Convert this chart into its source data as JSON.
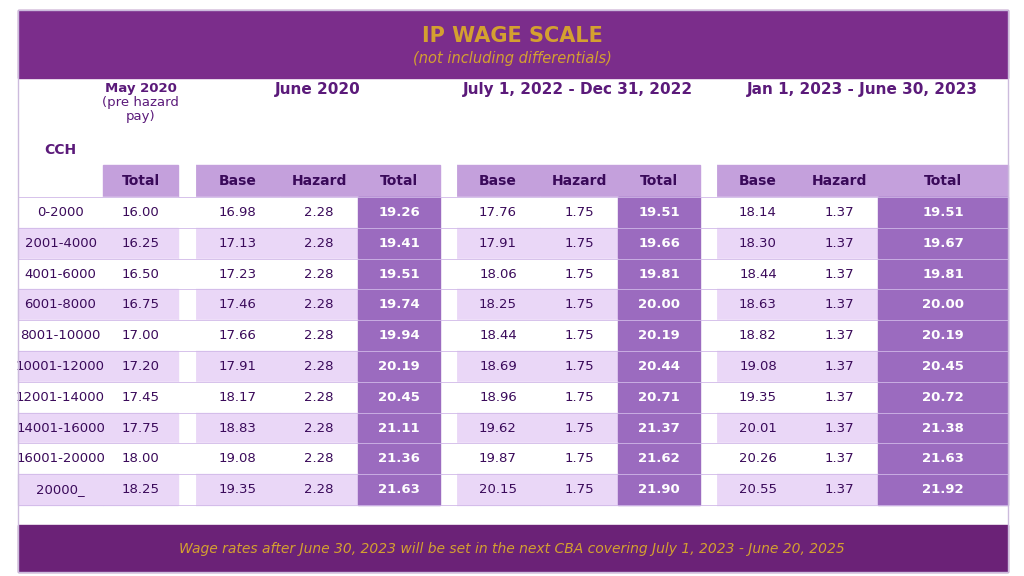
{
  "title": "IP WAGE SCALE",
  "subtitle": "(not including differentials)",
  "footer": "Wage rates after June 30, 2023 will be set in the next CBA covering July 1, 2023 - June 20, 2025",
  "header_bg": "#7B2D8B",
  "footer_bg": "#6B2277",
  "col_header_purple": "#C4A0DC",
  "total_cell_purple": "#9B6BBF",
  "alt_row_purple": "#EAD7F7",
  "white_row": "#FFFFFF",
  "header_text_gold": "#D4A030",
  "purple_text": "#5B1A7A",
  "rows": [
    [
      "0-2000",
      "16.00",
      "16.98",
      "2.28",
      "19.26",
      "17.76",
      "1.75",
      "19.51",
      "18.14",
      "1.37",
      "19.51"
    ],
    [
      "2001-4000",
      "16.25",
      "17.13",
      "2.28",
      "19.41",
      "17.91",
      "1.75",
      "19.66",
      "18.30",
      "1.37",
      "19.67"
    ],
    [
      "4001-6000",
      "16.50",
      "17.23",
      "2.28",
      "19.51",
      "18.06",
      "1.75",
      "19.81",
      "18.44",
      "1.37",
      "19.81"
    ],
    [
      "6001-8000",
      "16.75",
      "17.46",
      "2.28",
      "19.74",
      "18.25",
      "1.75",
      "20.00",
      "18.63",
      "1.37",
      "20.00"
    ],
    [
      "8001-10000",
      "17.00",
      "17.66",
      "2.28",
      "19.94",
      "18.44",
      "1.75",
      "20.19",
      "18.82",
      "1.37",
      "20.19"
    ],
    [
      "10001-12000",
      "17.20",
      "17.91",
      "2.28",
      "20.19",
      "18.69",
      "1.75",
      "20.44",
      "19.08",
      "1.37",
      "20.45"
    ],
    [
      "12001-14000",
      "17.45",
      "18.17",
      "2.28",
      "20.45",
      "18.96",
      "1.75",
      "20.71",
      "19.35",
      "1.37",
      "20.72"
    ],
    [
      "14001-16000",
      "17.75",
      "18.83",
      "2.28",
      "21.11",
      "19.62",
      "1.75",
      "21.37",
      "20.01",
      "1.37",
      "21.38"
    ],
    [
      "16001-20000",
      "18.00",
      "19.08",
      "2.28",
      "21.36",
      "19.87",
      "1.75",
      "21.62",
      "20.26",
      "1.37",
      "21.63"
    ],
    [
      "20000_",
      "18.25",
      "19.35",
      "2.28",
      "21.63",
      "20.15",
      "1.75",
      "21.90",
      "20.55",
      "1.37",
      "21.92"
    ]
  ]
}
